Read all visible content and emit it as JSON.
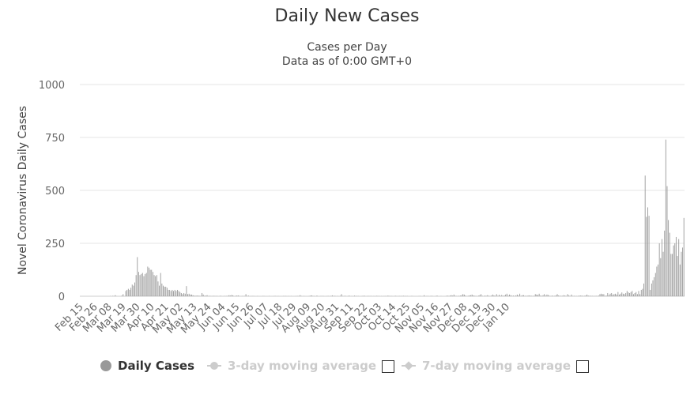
{
  "chart_data": {
    "type": "bar",
    "title": "Daily New Cases",
    "subtitle_lines": [
      "Cases per Day",
      "Data as of 0:00 GMT+0"
    ],
    "ylabel": "Novel Coronavirus Daily Cases",
    "ylim": [
      0,
      1000
    ],
    "y_ticks": [
      "1000",
      "750",
      "500",
      "250",
      "0"
    ],
    "x_tick_labels": [
      "Feb 15",
      "Feb 26",
      "Mar 08",
      "Mar 19",
      "Mar 30",
      "Apr 10",
      "Apr 21",
      "May 02",
      "May 13",
      "May 24",
      "Jun 04",
      "Jun 15",
      "Jun 26",
      "Jul 07",
      "Jul 18",
      "Jul 29",
      "Aug 09",
      "Aug 20",
      "Aug 31",
      "Sep 11",
      "Sep 22",
      "Oct 03",
      "Oct 14",
      "Oct 25",
      "Nov 05",
      "Nov 16",
      "Nov 27",
      "Dec 08",
      "Dec 19",
      "Dec 30",
      "Jan 10"
    ],
    "grid": true,
    "legend": "bottom",
    "bar_color": "#999999",
    "series": [
      {
        "name": "Daily Cases",
        "values": [
          0,
          0,
          0,
          0,
          0,
          0,
          0,
          0,
          0,
          0,
          0,
          0,
          0,
          0,
          0,
          0,
          0,
          0,
          0,
          0,
          0,
          0,
          0,
          1,
          0,
          2,
          1,
          5,
          0,
          0,
          0,
          0,
          3,
          10,
          0,
          25,
          30,
          35,
          30,
          40,
          55,
          50,
          65,
          100,
          185,
          115,
          100,
          105,
          110,
          95,
          105,
          110,
          140,
          135,
          125,
          125,
          115,
          100,
          95,
          100,
          70,
          50,
          110,
          60,
          50,
          45,
          45,
          40,
          30,
          30,
          25,
          30,
          25,
          30,
          25,
          30,
          25,
          20,
          15,
          10,
          15,
          12,
          48,
          10,
          12,
          8,
          8,
          5,
          3,
          2,
          3,
          3,
          2,
          1,
          15,
          8,
          2,
          3,
          5,
          1,
          2,
          1,
          1,
          2,
          1,
          1,
          1,
          0,
          2,
          1,
          0,
          1,
          1,
          1,
          2,
          5,
          3,
          6,
          4,
          0,
          2,
          3,
          4,
          1,
          0,
          1,
          1,
          1,
          10,
          1,
          3,
          0,
          1,
          1,
          1,
          0,
          0,
          1,
          0,
          0,
          0,
          1,
          1,
          0,
          0,
          0,
          1,
          0,
          0,
          0,
          1,
          1,
          0,
          1,
          0,
          0,
          0,
          1,
          1,
          1,
          0,
          1,
          0,
          1,
          0,
          0,
          0,
          1,
          1,
          1,
          5,
          1,
          0,
          1,
          0,
          0,
          0,
          1,
          3,
          4,
          1,
          1,
          0,
          3,
          0,
          0,
          1,
          1,
          1,
          0,
          0,
          1,
          1,
          0,
          2,
          4,
          1,
          2,
          0,
          1,
          0,
          2,
          10,
          1,
          1,
          2,
          0,
          1,
          3,
          0,
          1,
          0,
          3,
          1,
          1,
          1,
          0,
          0,
          1,
          2,
          2,
          0,
          1,
          1,
          1,
          1,
          0,
          1,
          0,
          2,
          1,
          1,
          0,
          1,
          0,
          1,
          1,
          1,
          3,
          1,
          1,
          1,
          0,
          1,
          2,
          0,
          1,
          1,
          1,
          1,
          2,
          1,
          1,
          1,
          0,
          0,
          1,
          1,
          0,
          0,
          0,
          0,
          1,
          1,
          0,
          0,
          5,
          0,
          1,
          1,
          0,
          1,
          2,
          0,
          0,
          1,
          3,
          0,
          0,
          1,
          0,
          0,
          0,
          1,
          3,
          1,
          3,
          5,
          3,
          8,
          2,
          1,
          1,
          2,
          3,
          5,
          10,
          8,
          3,
          0,
          2,
          4,
          5,
          8,
          4,
          2,
          2,
          0,
          3,
          5,
          10,
          2,
          0,
          3,
          2,
          5,
          2,
          1,
          3,
          8,
          4,
          2,
          10,
          2,
          7,
          2,
          6,
          2,
          3,
          8,
          12,
          3,
          8,
          5,
          2,
          3,
          1,
          4,
          8,
          3,
          12,
          2,
          5,
          5,
          2,
          2,
          2,
          4,
          3,
          2,
          1,
          2,
          10,
          8,
          6,
          12,
          3,
          2,
          5,
          10,
          3,
          8,
          6,
          2,
          1,
          3,
          1,
          2,
          4,
          10,
          4,
          2,
          2,
          2,
          5,
          3,
          1,
          10,
          4,
          1,
          8,
          1,
          2,
          1,
          1,
          1,
          3,
          3,
          3,
          1,
          2,
          3,
          8,
          3,
          2,
          2,
          2,
          1,
          1,
          2,
          1,
          3,
          10,
          12,
          10,
          10,
          2,
          3,
          15,
          6,
          12,
          15,
          8,
          10,
          12,
          8,
          20,
          8,
          12,
          18,
          12,
          10,
          15,
          25,
          18,
          15,
          20,
          25,
          10,
          15,
          20,
          10,
          25,
          10,
          30,
          35,
          60,
          570,
          375,
          420,
          380,
          30,
          60,
          75,
          90,
          110,
          140,
          150,
          250,
          180,
          270,
          210,
          310,
          740,
          520,
          360,
          300,
          200,
          200,
          240,
          250,
          280,
          190,
          270,
          150,
          210,
          230,
          370
        ]
      },
      {
        "name": "3-day moving average",
        "hidden": true
      },
      {
        "name": "7-day moving average",
        "hidden": true
      }
    ]
  },
  "legend": {
    "daily_cases": "Daily Cases",
    "ma3": "3-day moving average",
    "ma7": "7-day moving average"
  },
  "colors": {
    "bar": "#999999",
    "grid": "#e6e6e6",
    "axis_text": "#666666",
    "legend_inactive": "#cccccc"
  }
}
